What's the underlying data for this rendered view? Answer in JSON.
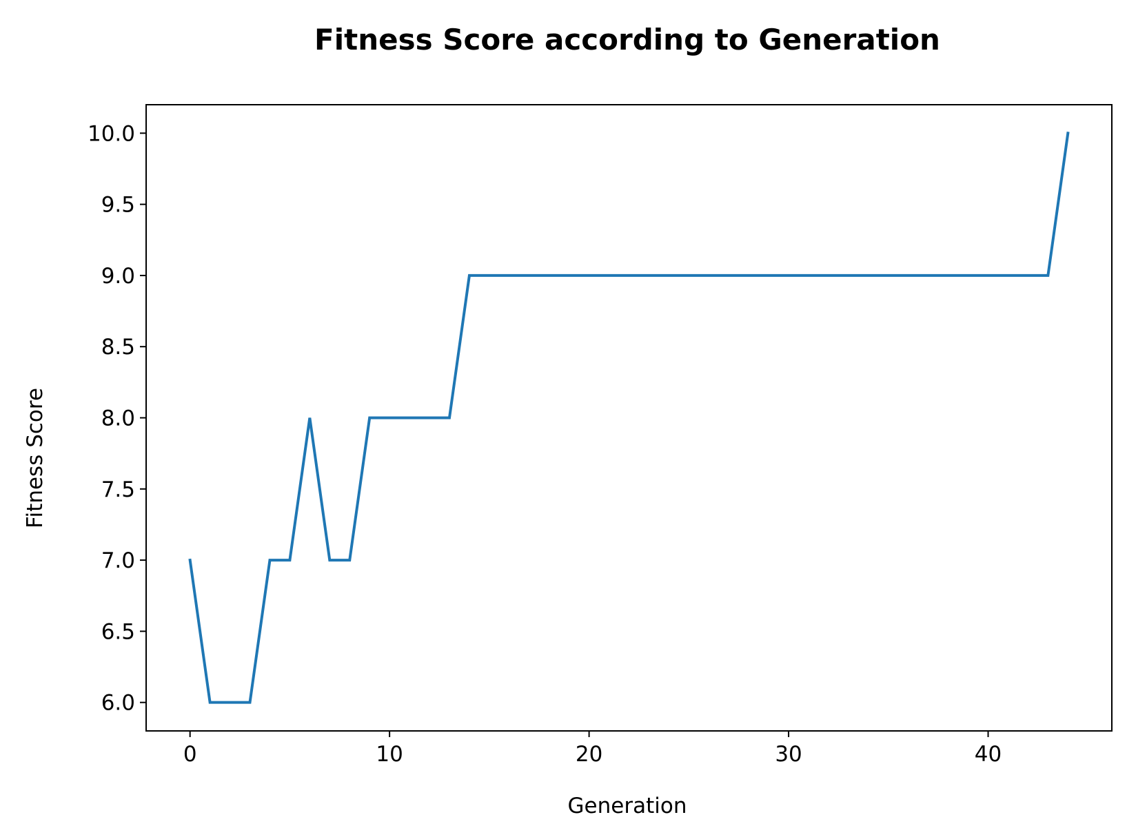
{
  "chart_data": {
    "type": "line",
    "title": "Fitness Score according to Generation",
    "xlabel": "Generation",
    "ylabel": "Fitness Score",
    "xlim": [
      -2.2,
      46.2
    ],
    "ylim": [
      5.8,
      10.2
    ],
    "grid": false,
    "xticks": [
      0,
      10,
      20,
      30,
      40
    ],
    "xtick_labels": [
      "0",
      "10",
      "20",
      "30",
      "40"
    ],
    "yticks": [
      6.0,
      6.5,
      7.0,
      7.5,
      8.0,
      8.5,
      9.0,
      9.5,
      10.0
    ],
    "ytick_labels": [
      "6.0",
      "6.5",
      "7.0",
      "7.5",
      "8.0",
      "8.5",
      "9.0",
      "9.5",
      "10.0"
    ],
    "series": [
      {
        "color": "#1f77b4",
        "x": [
          0,
          1,
          2,
          3,
          4,
          5,
          6,
          7,
          8,
          9,
          10,
          11,
          12,
          13,
          14,
          15,
          16,
          17,
          18,
          19,
          20,
          21,
          22,
          23,
          24,
          25,
          26,
          27,
          28,
          29,
          30,
          31,
          32,
          33,
          34,
          35,
          36,
          37,
          38,
          39,
          40,
          41,
          42,
          43,
          44
        ],
        "y": [
          7,
          6,
          6,
          6,
          7,
          7,
          8,
          7,
          7,
          8,
          8,
          8,
          8,
          8,
          9,
          9,
          9,
          9,
          9,
          9,
          9,
          9,
          9,
          9,
          9,
          9,
          9,
          9,
          9,
          9,
          9,
          9,
          9,
          9,
          9,
          9,
          9,
          9,
          9,
          9,
          9,
          9,
          9,
          9,
          10
        ]
      }
    ]
  }
}
